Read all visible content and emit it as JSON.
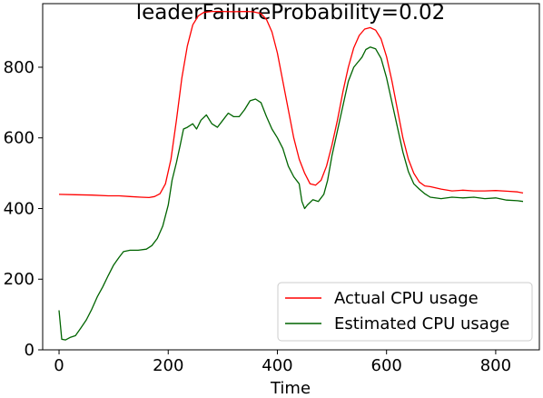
{
  "chart_data": {
    "type": "line",
    "title": "leaderFailureProbability=0.02",
    "xlabel": "Time",
    "ylabel": "",
    "xlim": [
      -30,
      880
    ],
    "ylim": [
      0,
      980
    ],
    "xticks": [
      0,
      200,
      400,
      600,
      800
    ],
    "yticks": [
      0,
      200,
      400,
      600,
      800
    ],
    "grid": false,
    "legend_position": "lower-right",
    "series": [
      {
        "name": "Actual CPU usage",
        "color": "#ff0000",
        "points": [
          [
            0,
            440
          ],
          [
            30,
            439
          ],
          [
            60,
            438
          ],
          [
            90,
            436
          ],
          [
            110,
            436
          ],
          [
            130,
            434
          ],
          [
            150,
            432
          ],
          [
            165,
            431
          ],
          [
            175,
            434
          ],
          [
            185,
            442
          ],
          [
            195,
            470
          ],
          [
            205,
            540
          ],
          [
            215,
            650
          ],
          [
            225,
            770
          ],
          [
            235,
            860
          ],
          [
            245,
            920
          ],
          [
            255,
            945
          ],
          [
            265,
            955
          ],
          [
            280,
            958
          ],
          [
            300,
            958
          ],
          [
            320,
            957
          ],
          [
            340,
            958
          ],
          [
            355,
            957
          ],
          [
            370,
            952
          ],
          [
            380,
            935
          ],
          [
            390,
            900
          ],
          [
            400,
            840
          ],
          [
            410,
            760
          ],
          [
            420,
            680
          ],
          [
            430,
            600
          ],
          [
            440,
            540
          ],
          [
            450,
            500
          ],
          [
            460,
            470
          ],
          [
            470,
            466
          ],
          [
            480,
            480
          ],
          [
            490,
            520
          ],
          [
            500,
            580
          ],
          [
            510,
            650
          ],
          [
            520,
            730
          ],
          [
            530,
            800
          ],
          [
            540,
            855
          ],
          [
            550,
            890
          ],
          [
            560,
            908
          ],
          [
            570,
            912
          ],
          [
            580,
            905
          ],
          [
            590,
            880
          ],
          [
            600,
            830
          ],
          [
            610,
            760
          ],
          [
            620,
            680
          ],
          [
            630,
            600
          ],
          [
            640,
            540
          ],
          [
            650,
            500
          ],
          [
            660,
            475
          ],
          [
            670,
            464
          ],
          [
            680,
            462
          ],
          [
            700,
            455
          ],
          [
            720,
            450
          ],
          [
            740,
            452
          ],
          [
            760,
            450
          ],
          [
            780,
            450
          ],
          [
            800,
            451
          ],
          [
            820,
            449
          ],
          [
            840,
            447
          ],
          [
            850,
            444
          ]
        ]
      },
      {
        "name": "Estimated CPU usage",
        "color": "#006400",
        "points": [
          [
            0,
            112
          ],
          [
            5,
            30
          ],
          [
            12,
            28
          ],
          [
            20,
            35
          ],
          [
            30,
            40
          ],
          [
            40,
            62
          ],
          [
            50,
            85
          ],
          [
            60,
            115
          ],
          [
            70,
            150
          ],
          [
            80,
            178
          ],
          [
            90,
            210
          ],
          [
            100,
            240
          ],
          [
            110,
            262
          ],
          [
            118,
            278
          ],
          [
            130,
            282
          ],
          [
            145,
            282
          ],
          [
            160,
            285
          ],
          [
            170,
            295
          ],
          [
            180,
            315
          ],
          [
            190,
            350
          ],
          [
            200,
            410
          ],
          [
            207,
            480
          ],
          [
            215,
            530
          ],
          [
            222,
            580
          ],
          [
            228,
            625
          ],
          [
            235,
            630
          ],
          [
            245,
            640
          ],
          [
            252,
            625
          ],
          [
            260,
            650
          ],
          [
            270,
            665
          ],
          [
            280,
            640
          ],
          [
            290,
            630
          ],
          [
            300,
            650
          ],
          [
            310,
            670
          ],
          [
            320,
            660
          ],
          [
            330,
            660
          ],
          [
            340,
            680
          ],
          [
            350,
            705
          ],
          [
            360,
            710
          ],
          [
            370,
            700
          ],
          [
            380,
            660
          ],
          [
            390,
            625
          ],
          [
            400,
            600
          ],
          [
            410,
            570
          ],
          [
            420,
            520
          ],
          [
            430,
            490
          ],
          [
            440,
            470
          ],
          [
            445,
            420
          ],
          [
            450,
            400
          ],
          [
            455,
            410
          ],
          [
            465,
            425
          ],
          [
            475,
            420
          ],
          [
            485,
            440
          ],
          [
            492,
            480
          ],
          [
            500,
            550
          ],
          [
            510,
            620
          ],
          [
            520,
            690
          ],
          [
            530,
            760
          ],
          [
            540,
            800
          ],
          [
            548,
            815
          ],
          [
            555,
            828
          ],
          [
            562,
            850
          ],
          [
            570,
            857
          ],
          [
            580,
            852
          ],
          [
            590,
            825
          ],
          [
            600,
            770
          ],
          [
            610,
            700
          ],
          [
            620,
            630
          ],
          [
            630,
            560
          ],
          [
            640,
            505
          ],
          [
            650,
            470
          ],
          [
            660,
            455
          ],
          [
            670,
            442
          ],
          [
            680,
            432
          ],
          [
            700,
            428
          ],
          [
            720,
            432
          ],
          [
            740,
            430
          ],
          [
            760,
            432
          ],
          [
            780,
            428
          ],
          [
            800,
            430
          ],
          [
            820,
            424
          ],
          [
            840,
            422
          ],
          [
            850,
            420
          ]
        ]
      }
    ]
  }
}
